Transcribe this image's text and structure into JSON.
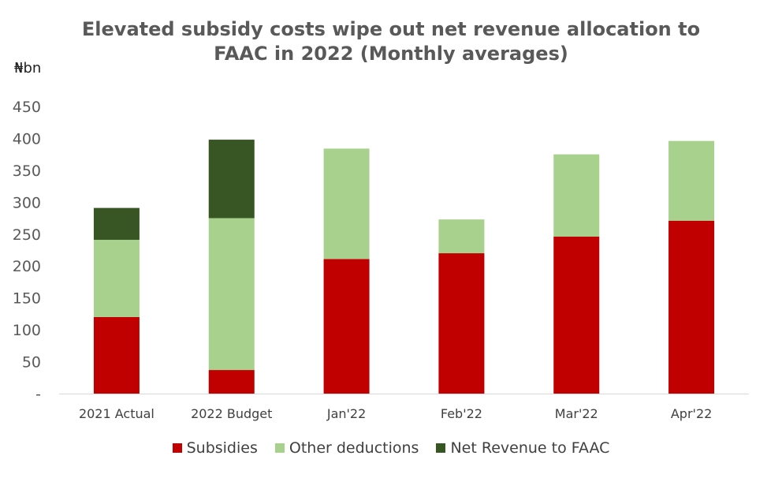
{
  "chart_data": {
    "type": "bar",
    "stacked": true,
    "title_lines": [
      "Elevated subsidy costs wipe out net revenue allocation to",
      "FAAC in 2022 (Monthly averages)"
    ],
    "unit_label": "₦bn",
    "categories": [
      "2021 Actual",
      "2022 Budget",
      "Jan'22",
      "Feb'22",
      "Mar'22",
      "Apr'22"
    ],
    "series": [
      {
        "name": "Subsidies",
        "color": "#c00000",
        "values": [
          120,
          37,
          211,
          220,
          246,
          271
        ]
      },
      {
        "name": "Other deductions",
        "color": "#a9d18e",
        "values": [
          121,
          238,
          173,
          53,
          129,
          125
        ]
      },
      {
        "name": "Net Revenue to FAAC",
        "color": "#375623",
        "values": [
          50,
          123,
          0,
          0,
          0,
          0
        ]
      }
    ],
    "yticks": [
      "-",
      "50",
      "100",
      "150",
      "200",
      "250",
      "300",
      "350",
      "400",
      "450"
    ],
    "ylim": [
      0,
      450
    ],
    "grid": false,
    "legend_position": "bottom"
  }
}
